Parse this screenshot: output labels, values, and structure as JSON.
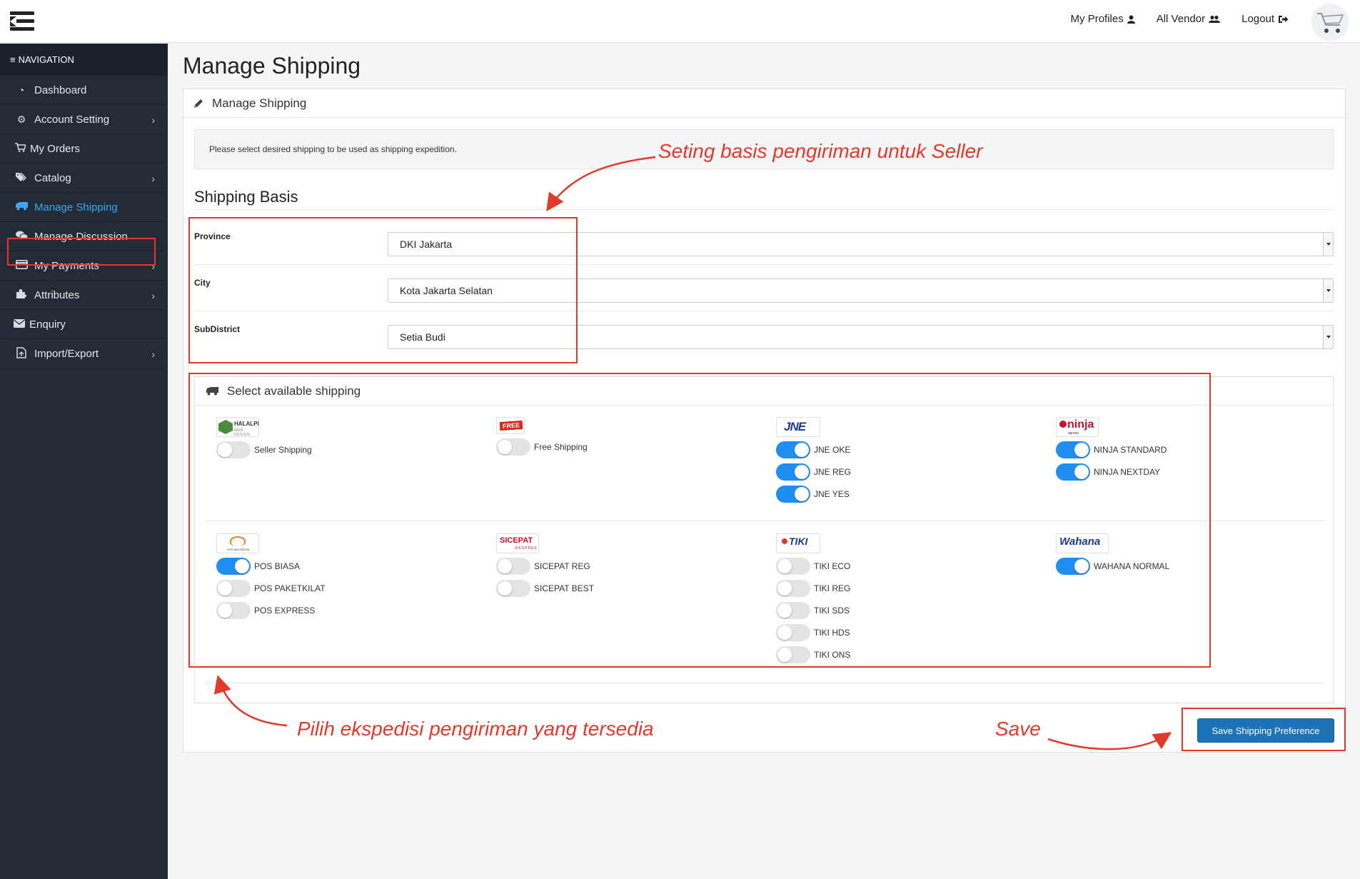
{
  "topbar": {
    "nav": [
      {
        "label": "My Profiles",
        "icon": "user-icon"
      },
      {
        "label": "All Vendor",
        "icon": "users-icon"
      },
      {
        "label": "Logout",
        "icon": "sign-out-icon"
      }
    ]
  },
  "sidebar": {
    "header": "NAVIGATION",
    "items": [
      {
        "label": "Dashboard",
        "icon": "dashboard-icon",
        "submenu": false
      },
      {
        "label": "Account Setting",
        "icon": "gear-icon",
        "submenu": true
      },
      {
        "label": "My Orders",
        "icon": "cart-icon",
        "submenu": false
      },
      {
        "label": "Catalog",
        "icon": "tags-icon",
        "submenu": true
      },
      {
        "label": "Manage Shipping",
        "icon": "truck-icon",
        "submenu": false,
        "active": true
      },
      {
        "label": "Manage Discussion",
        "icon": "comments-icon",
        "submenu": false
      },
      {
        "label": "My Payments",
        "icon": "credit-card-icon",
        "submenu": true
      },
      {
        "label": "Attributes",
        "icon": "puzzle-icon",
        "submenu": true
      },
      {
        "label": "Enquiry",
        "icon": "envelope-icon",
        "submenu": false
      },
      {
        "label": "Import/Export",
        "icon": "file-export-icon",
        "submenu": true
      }
    ]
  },
  "main": {
    "title": "Manage Shipping",
    "panel_title": "Manage Shipping",
    "info": "Please select desired shipping to be used as shipping expedition.",
    "section_title": "Shipping Basis",
    "fields": [
      {
        "label": "Province",
        "value": "DKI Jakarta"
      },
      {
        "label": "City",
        "value": "Kota Jakarta Selatan"
      },
      {
        "label": "SubDistrict",
        "value": "Setia Budi"
      }
    ],
    "available_title": "Select available shipping",
    "carriers": [
      {
        "logo": "HALALPRO",
        "logo_sub": "WEB DESIGN",
        "options": [
          {
            "label": "Seller Shipping",
            "on": false
          }
        ]
      },
      {
        "logo": "FREE",
        "options": [
          {
            "label": "Free Shipping",
            "on": false
          }
        ]
      },
      {
        "logo": "JNE",
        "options": [
          {
            "label": "JNE OKE",
            "on": true
          },
          {
            "label": "JNE REG",
            "on": true
          },
          {
            "label": "JNE YES",
            "on": true
          }
        ]
      },
      {
        "logo": "ninja",
        "logo_sub": "xpress",
        "options": [
          {
            "label": "NINJA STANDARD",
            "on": true
          },
          {
            "label": "NINJA NEXTDAY",
            "on": true
          }
        ]
      },
      {
        "logo": "POS INDONESIA",
        "options": [
          {
            "label": "POS BIASA",
            "on": true
          },
          {
            "label": "POS PAKETKILAT",
            "on": false
          },
          {
            "label": "POS EXPRESS",
            "on": false
          }
        ]
      },
      {
        "logo": "SICEPAT",
        "logo_sub": "EKSPRES",
        "options": [
          {
            "label": "SICEPAT REG",
            "on": false
          },
          {
            "label": "SICEPAT BEST",
            "on": false
          }
        ]
      },
      {
        "logo": "TIKI",
        "options": [
          {
            "label": "TIKI ECO",
            "on": false
          },
          {
            "label": "TIKI REG",
            "on": false
          },
          {
            "label": "TIKI SDS",
            "on": false
          },
          {
            "label": "TIKI HDS",
            "on": false
          },
          {
            "label": "TIKI ONS",
            "on": false
          }
        ]
      },
      {
        "logo": "Wahana",
        "options": [
          {
            "label": "WAHANA NORMAL",
            "on": true
          }
        ]
      }
    ],
    "save_label": "Save Shipping Preference"
  },
  "annotations": {
    "basis": "Seting basis pengiriman untuk Seller",
    "available": "Pilih ekspedisi pengiriman yang tersedia",
    "save": "Save"
  },
  "colors": {
    "sidebar_bg": "#232b36",
    "active": "#3ba6f2",
    "toggle_on": "#1f8ef1",
    "button": "#1d73b8",
    "annotation": "#e23a2a"
  }
}
